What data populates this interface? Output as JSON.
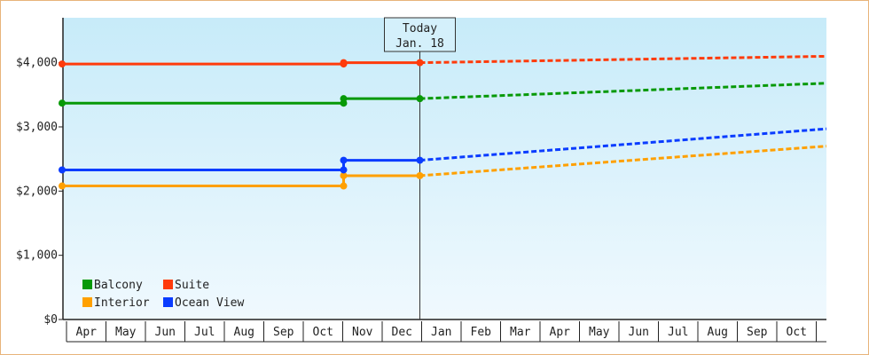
{
  "chart_data": {
    "type": "line",
    "title": "",
    "xlabel": "",
    "ylabel": "",
    "ylim": [
      0,
      4700
    ],
    "yticks": [
      {
        "value": 0,
        "label": "$0"
      },
      {
        "value": 1000,
        "label": "$1,000"
      },
      {
        "value": 2000,
        "label": "$2,000"
      },
      {
        "value": 3000,
        "label": "$3,000"
      },
      {
        "value": 4000,
        "label": "$4,000"
      }
    ],
    "months": [
      "Apr",
      "May",
      "Jun",
      "Jul",
      "Aug",
      "Sep",
      "Oct",
      "Nov",
      "Dec",
      "Jan",
      "Feb",
      "Mar",
      "Apr",
      "May",
      "Jun",
      "Jul",
      "Aug",
      "Sep",
      "Oct"
    ],
    "today": {
      "line1": "Today",
      "line2": "Jan. 18",
      "month_index": 9
    },
    "grid": false,
    "legend_position": "bottom-left",
    "series": [
      {
        "name": "Balcony",
        "color": "#079907",
        "history": [
          [
            0,
            3370
          ],
          [
            7,
            3370
          ],
          [
            7,
            3440
          ],
          [
            9.6,
            3440
          ]
        ],
        "forecast": [
          [
            9.6,
            3440
          ],
          [
            19,
            3680
          ]
        ]
      },
      {
        "name": "Suite",
        "color": "#ff3b0b",
        "history": [
          [
            0,
            3980
          ],
          [
            7,
            3980
          ],
          [
            7,
            4000
          ],
          [
            9.6,
            4000
          ]
        ],
        "forecast": [
          [
            9.6,
            4000
          ],
          [
            19,
            4100
          ]
        ]
      },
      {
        "name": "Interior",
        "color": "#ffa000",
        "history": [
          [
            0,
            2080
          ],
          [
            7,
            2080
          ],
          [
            7,
            2240
          ],
          [
            9.6,
            2240
          ]
        ],
        "forecast": [
          [
            9.6,
            2240
          ],
          [
            19,
            2700
          ]
        ]
      },
      {
        "name": "Ocean View",
        "color": "#0a3cff",
        "history": [
          [
            0,
            2330
          ],
          [
            7,
            2330
          ],
          [
            7,
            2480
          ],
          [
            9.6,
            2480
          ]
        ],
        "forecast": [
          [
            9.6,
            2480
          ],
          [
            19,
            2970
          ]
        ]
      }
    ]
  }
}
